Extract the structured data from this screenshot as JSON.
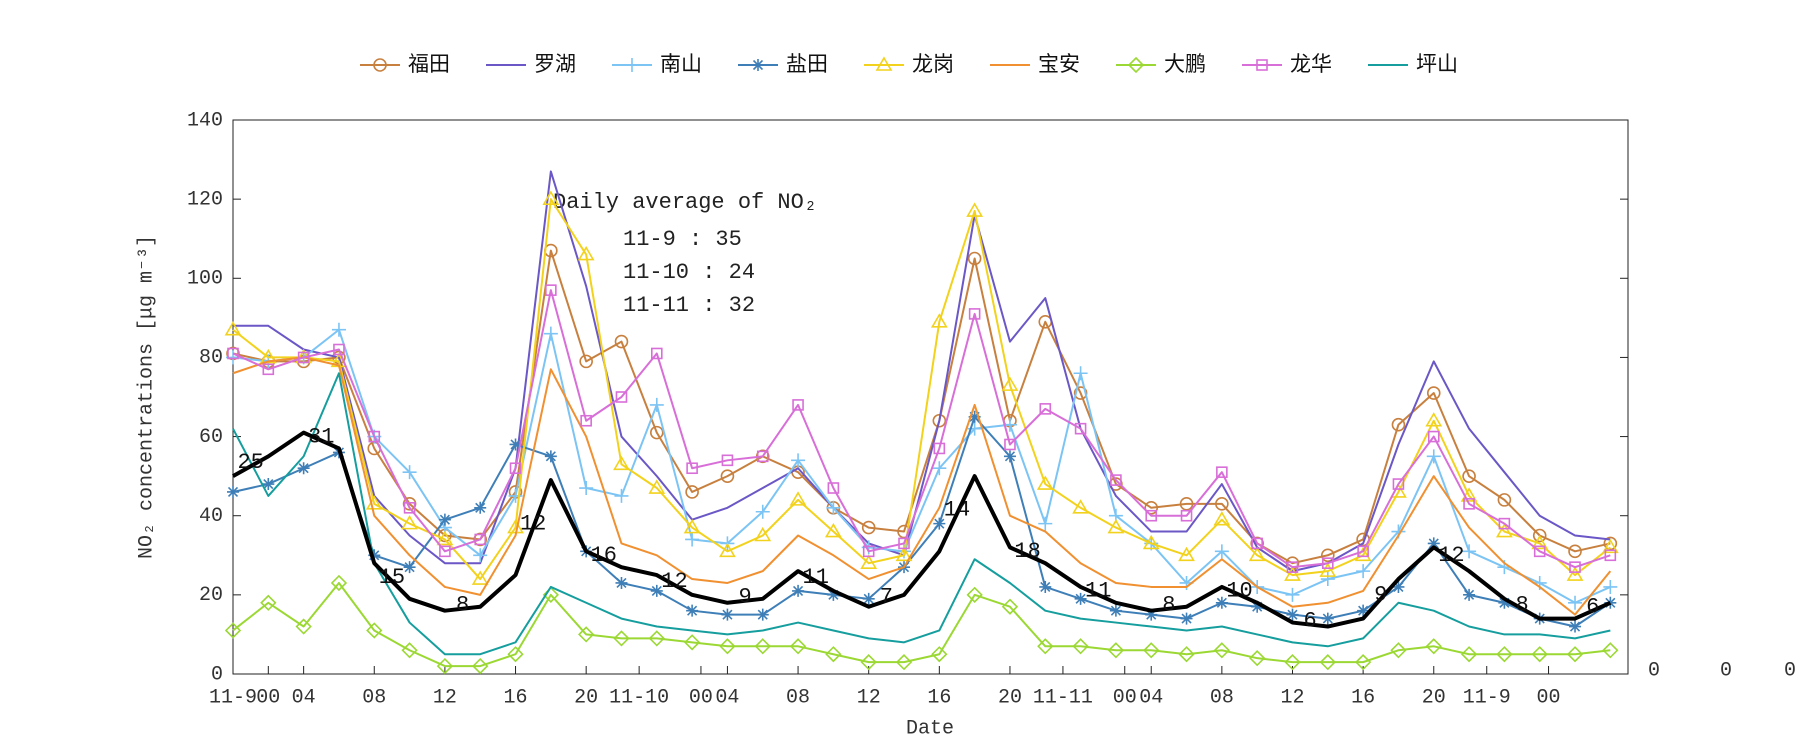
{
  "chart_data": {
    "type": "line",
    "x_label": "Date",
    "y_label": "NO₂ concentrations [μg m⁻³]",
    "x": [
      0,
      2,
      4,
      6,
      8,
      10,
      12,
      14,
      16,
      18,
      20,
      22,
      24,
      26,
      28,
      30,
      32,
      34,
      36,
      38,
      40,
      42,
      44,
      46,
      48,
      50,
      52,
      54,
      56,
      58,
      60,
      62,
      64,
      66,
      68,
      70,
      72,
      74,
      76,
      78
    ],
    "xlim": [
      0,
      79
    ],
    "xticks": [
      {
        "value": 0,
        "label": "11-9"
      },
      {
        "value": 2,
        "label": "00"
      },
      {
        "value": 4,
        "label": "04"
      },
      {
        "value": 8,
        "label": "08"
      },
      {
        "value": 12,
        "label": "12"
      },
      {
        "value": 16,
        "label": "16"
      },
      {
        "value": 20,
        "label": "20"
      },
      {
        "value": 23,
        "label": "11-10"
      },
      {
        "value": 26.5,
        "label": "00"
      },
      {
        "value": 28,
        "label": "04"
      },
      {
        "value": 32,
        "label": "08"
      },
      {
        "value": 36,
        "label": "12"
      },
      {
        "value": 40,
        "label": "16"
      },
      {
        "value": 44,
        "label": "20"
      },
      {
        "value": 47,
        "label": "11-11"
      },
      {
        "value": 50.5,
        "label": "00"
      },
      {
        "value": 52,
        "label": "04"
      },
      {
        "value": 56,
        "label": "08"
      },
      {
        "value": 60,
        "label": "12"
      },
      {
        "value": 64,
        "label": "16"
      },
      {
        "value": 68,
        "label": "20"
      },
      {
        "value": 71,
        "label": "11-9"
      },
      {
        "value": 74.5,
        "label": "00"
      }
    ],
    "ylim": [
      0,
      140
    ],
    "yticks": [
      0,
      20,
      40,
      60,
      80,
      100,
      120,
      140
    ],
    "series": [
      {
        "name": "福田",
        "color": "#c8803f",
        "marker": "circle",
        "values": [
          81,
          79,
          79,
          80,
          57,
          43,
          35,
          34,
          46,
          107,
          79,
          84,
          61,
          46,
          50,
          55,
          51,
          42,
          37,
          36,
          64,
          105,
          64,
          89,
          71,
          48,
          42,
          43,
          43,
          33,
          28,
          30,
          34,
          63,
          71,
          50,
          44,
          35,
          31,
          33
        ]
      },
      {
        "name": "罗湖",
        "color": "#6b57c6",
        "marker": "none",
        "values": [
          88,
          88,
          82,
          80,
          45,
          35,
          28,
          28,
          52,
          127,
          98,
          60,
          50,
          39,
          42,
          47,
          52,
          42,
          33,
          30,
          64,
          116,
          84,
          95,
          62,
          45,
          36,
          36,
          48,
          32,
          26,
          28,
          33,
          58,
          79,
          62,
          51,
          40,
          35,
          34
        ]
      },
      {
        "name": "南山",
        "color": "#7cc4f4",
        "marker": "plus",
        "values": [
          80,
          79,
          80,
          87,
          60,
          51,
          37,
          30,
          45,
          86,
          47,
          45,
          68,
          34,
          33,
          41,
          54,
          42,
          32,
          31,
          52,
          62,
          63,
          38,
          76,
          40,
          33,
          23,
          31,
          22,
          20,
          24,
          26,
          36,
          55,
          31,
          27,
          23,
          18,
          22
        ]
      },
      {
        "name": "盐田",
        "color": "#3f7fb8",
        "marker": "star",
        "values": [
          46,
          48,
          52,
          56,
          30,
          27,
          39,
          42,
          58,
          55,
          31,
          23,
          21,
          16,
          15,
          15,
          21,
          20,
          19,
          27,
          38,
          65,
          55,
          22,
          19,
          16,
          15,
          14,
          18,
          17,
          15,
          14,
          16,
          22,
          33,
          20,
          18,
          14,
          12,
          18
        ]
      },
      {
        "name": "龙岗",
        "color": "#f2d21c",
        "marker": "triangle",
        "values": [
          87,
          80,
          80,
          79,
          43,
          38,
          34,
          24,
          37,
          120,
          106,
          53,
          47,
          37,
          31,
          35,
          44,
          36,
          28,
          30,
          89,
          117,
          73,
          48,
          42,
          37,
          33,
          30,
          39,
          30,
          25,
          26,
          30,
          46,
          64,
          45,
          36,
          33,
          25,
          32
        ]
      },
      {
        "name": "宝安",
        "color": "#f09030",
        "marker": "none",
        "values": [
          76,
          79,
          80,
          78,
          40,
          30,
          22,
          20,
          35,
          77,
          60,
          33,
          30,
          24,
          23,
          26,
          35,
          30,
          24,
          27,
          42,
          68,
          40,
          36,
          28,
          23,
          22,
          22,
          29,
          22,
          17,
          18,
          21,
          35,
          50,
          37,
          28,
          22,
          15,
          26
        ]
      },
      {
        "name": "大鹏",
        "color": "#9bd833",
        "marker": "diamond",
        "values": [
          11,
          18,
          12,
          23,
          11,
          6,
          2,
          2,
          5,
          20,
          10,
          9,
          9,
          8,
          7,
          7,
          7,
          5,
          3,
          3,
          5,
          20,
          17,
          7,
          7,
          6,
          6,
          5,
          6,
          4,
          3,
          3,
          3,
          6,
          7,
          5,
          5,
          5,
          5,
          6
        ]
      },
      {
        "name": "龙华",
        "color": "#d86ed8",
        "marker": "square",
        "values": [
          81,
          77,
          80,
          82,
          60,
          42,
          31,
          34,
          52,
          97,
          64,
          70,
          81,
          52,
          54,
          55,
          68,
          47,
          31,
          33,
          57,
          91,
          58,
          67,
          62,
          49,
          40,
          40,
          51,
          33,
          27,
          28,
          31,
          48,
          60,
          43,
          38,
          31,
          27,
          30
        ]
      },
      {
        "name": "坪山",
        "color": "#169e9e",
        "marker": "none",
        "values": [
          62,
          45,
          55,
          76,
          28,
          13,
          5,
          5,
          8,
          22,
          18,
          14,
          12,
          11,
          10,
          11,
          13,
          11,
          9,
          8,
          11,
          29,
          23,
          16,
          14,
          13,
          12,
          11,
          12,
          10,
          8,
          7,
          9,
          18,
          16,
          12,
          10,
          10,
          9,
          11
        ]
      }
    ],
    "average_line": {
      "color": "#000000",
      "values": [
        50,
        55,
        61,
        57,
        28,
        19,
        16,
        17,
        25,
        49,
        31,
        27,
        25,
        20,
        18,
        19,
        26,
        21,
        17,
        20,
        31,
        50,
        32,
        28,
        22,
        18,
        16,
        17,
        22,
        18,
        13,
        12,
        14,
        24,
        32,
        26,
        19,
        14,
        14,
        18
      ]
    },
    "average_labels": [
      25,
      31,
      15,
      8,
      12,
      16,
      12,
      9,
      11,
      7,
      14,
      18,
      11,
      8,
      10,
      6,
      9,
      12,
      8,
      6
    ],
    "annotation_title": "Daily average of NO₂",
    "annotations": [
      "11-9 : 35",
      "11-10 : 24",
      "11-11 : 32"
    ],
    "overflow_labels": [
      "0",
      "0",
      "0"
    ]
  }
}
